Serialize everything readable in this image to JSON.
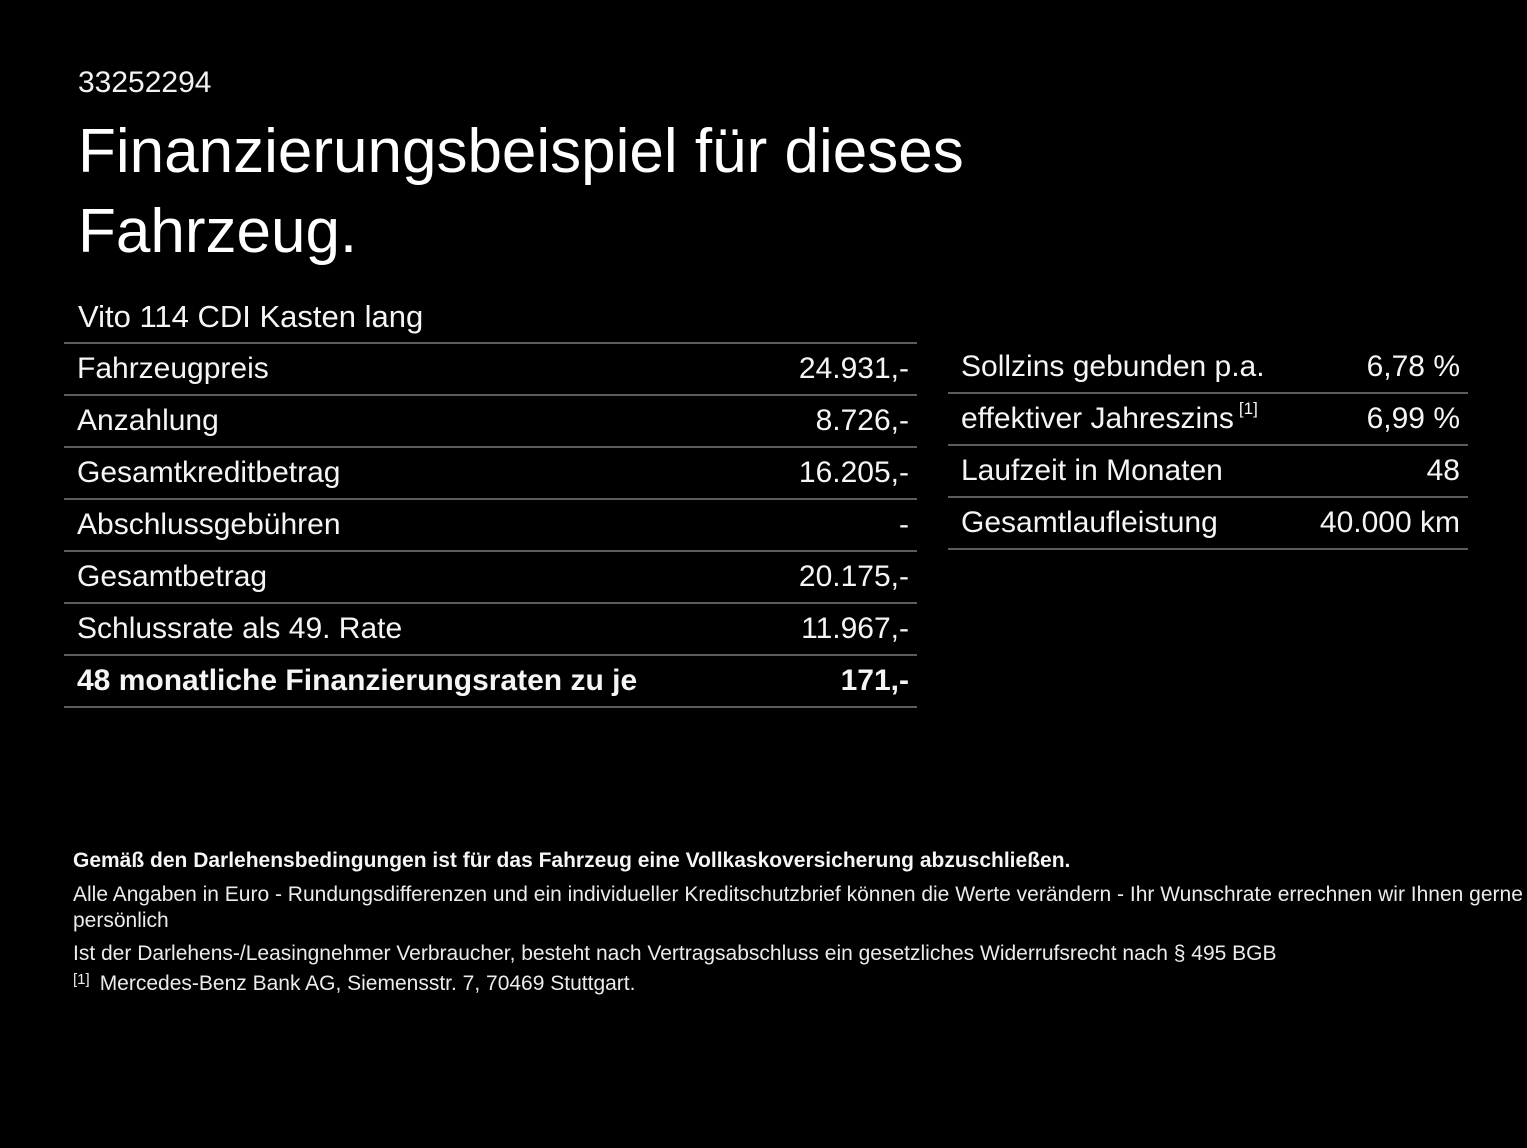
{
  "page": {
    "id_number": "33252294",
    "title": "Finanzierungsbeispiel für dieses Fahrzeug.",
    "vehicle": "Vito 114 CDI Kasten lang"
  },
  "finance_table": {
    "rows": [
      {
        "label": "Fahrzeugpreis",
        "value": "24.931,-"
      },
      {
        "label": "Anzahlung",
        "value": "8.726,-"
      },
      {
        "label": "Gesamtkreditbetrag",
        "value": "16.205,-"
      },
      {
        "label": "Abschlussgebühren",
        "value": "-"
      },
      {
        "label": "Gesamtbetrag",
        "value": "20.175,-"
      },
      {
        "label": "Schlussrate als 49. Rate",
        "value": "11.967,-"
      },
      {
        "label": "48 monatliche Finanzierungsraten zu je",
        "value": "171,-"
      }
    ]
  },
  "conditions_table": {
    "rows": [
      {
        "label": "Sollzins gebunden p.a.",
        "value": "6,78 %"
      },
      {
        "label": "effektiver Jahreszins",
        "footnote_marker": "[1]",
        "value": "6,99 %"
      },
      {
        "label": "Laufzeit in Monaten",
        "value": "48"
      },
      {
        "label": "Gesamtlaufleistung",
        "value": "40.000 km"
      }
    ]
  },
  "footer": {
    "insurance_note": "Gemäß den Darlehensbedingungen ist für das Fahrzeug eine Vollkaskoversicherung abzuschließen.",
    "disclaimer_line1": "Alle Angaben in Euro - Rundungsdifferenzen und ein individueller Kreditschutzbrief können die Werte verändern - Ihr Wunschrate errechnen wir Ihnen gerne persönlich",
    "disclaimer_line2": "Ist der Darlehens-/Leasingnehmer Verbraucher, besteht nach Vertragsabschluss ein gesetzliches Widerrufsrecht nach § 495 BGB",
    "footnote_marker": "[1]",
    "footnote_text": "Mercedes-Benz Bank AG, Siemensstr. 7, 70469 Stuttgart."
  },
  "colors": {
    "background": "#000000",
    "text": "#f5f5f5",
    "title": "#ffffff",
    "divider": "#5c5c5c"
  }
}
